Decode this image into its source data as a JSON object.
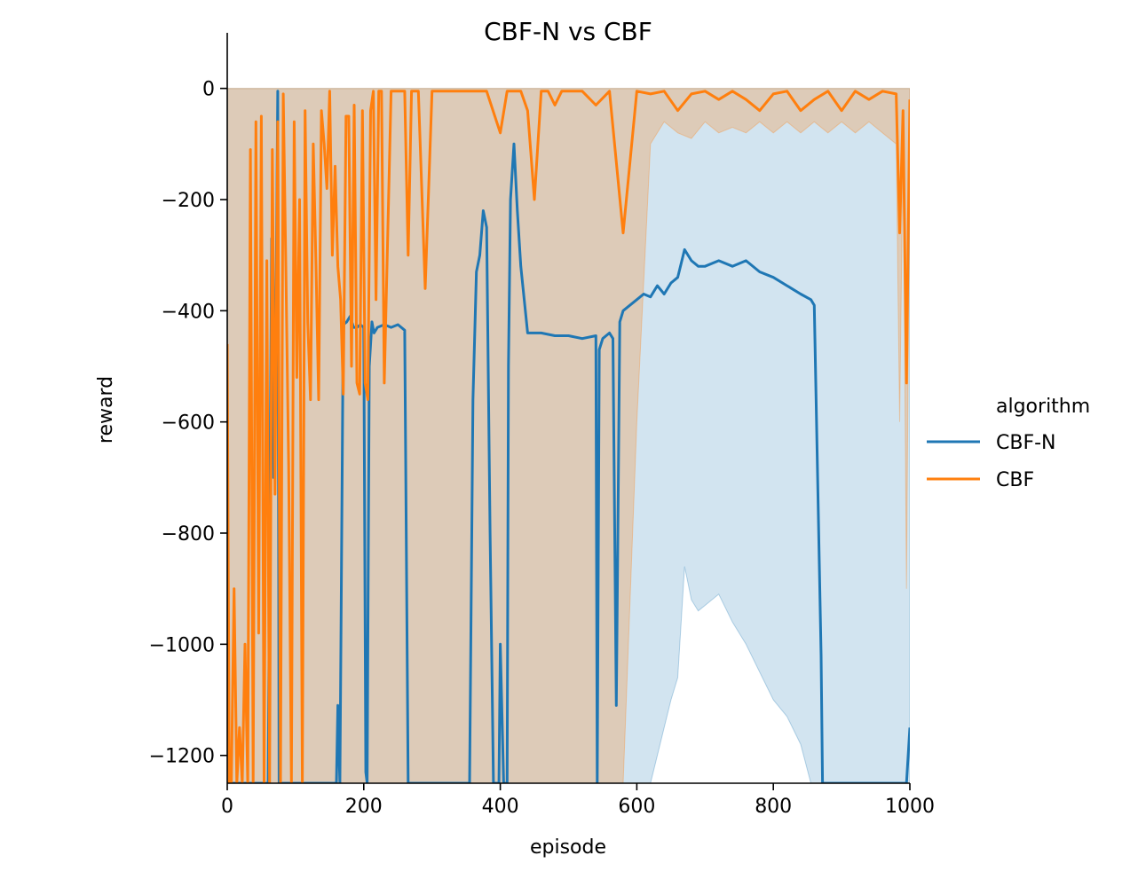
{
  "chart_data": {
    "type": "line",
    "title": "CBF-N vs CBF",
    "xlabel": "episode",
    "ylabel": "reward",
    "xlim": [
      0,
      1000
    ],
    "ylim": [
      -1250,
      100
    ],
    "x_ticks": [
      0,
      200,
      400,
      600,
      800,
      1000
    ],
    "y_ticks": [
      0,
      -200,
      -400,
      -600,
      -800,
      -1000,
      -1200
    ],
    "x_tick_labels": [
      "0",
      "200",
      "400",
      "600",
      "800",
      "1000"
    ],
    "y_tick_labels": [
      "0",
      "−200",
      "−400",
      "−600",
      "−800",
      "−1000",
      "−1200"
    ],
    "grid": false,
    "legend": {
      "title": "algorithm",
      "placement": "right"
    },
    "series": [
      {
        "name": "CBF-N",
        "color": "#1f77b4",
        "band_color": "#1f77b4",
        "x": [
          0,
          60,
          65,
          68,
          70,
          72,
          74,
          76,
          78,
          80,
          150,
          155,
          160,
          162,
          165,
          170,
          175,
          180,
          185,
          190,
          195,
          200,
          203,
          205,
          208,
          212,
          215,
          220,
          230,
          240,
          250,
          260,
          265,
          268,
          350,
          355,
          360,
          365,
          370,
          375,
          380,
          385,
          390,
          398,
          400,
          405,
          408,
          410,
          412,
          415,
          420,
          425,
          430,
          440,
          460,
          480,
          500,
          520,
          540,
          542,
          545,
          550,
          555,
          560,
          565,
          570,
          575,
          580,
          590,
          600,
          610,
          620,
          630,
          640,
          650,
          660,
          670,
          680,
          690,
          700,
          720,
          740,
          760,
          780,
          800,
          820,
          840,
          855,
          860,
          870,
          872,
          875,
          878,
          990,
          995,
          1000
        ],
        "y": [
          -1250,
          -1250,
          -270,
          -700,
          -620,
          -300,
          -5,
          -1250,
          -1250,
          -1250,
          -1250,
          -1250,
          -1250,
          -1110,
          -1250,
          -425,
          -420,
          -410,
          -430,
          -430,
          -425,
          -430,
          -1230,
          -1250,
          -500,
          -420,
          -440,
          -430,
          -425,
          -430,
          -425,
          -435,
          -1250,
          -1250,
          -1250,
          -1250,
          -560,
          -330,
          -300,
          -220,
          -250,
          -800,
          -1250,
          -1250,
          -1000,
          -1250,
          -1250,
          -1250,
          -500,
          -200,
          -100,
          -220,
          -320,
          -440,
          -440,
          -445,
          -445,
          -450,
          -445,
          -1250,
          -470,
          -450,
          -445,
          -440,
          -450,
          -1110,
          -420,
          -400,
          -390,
          -380,
          -370,
          -375,
          -355,
          -370,
          -350,
          -340,
          -290,
          -310,
          -320,
          -320,
          -310,
          -320,
          -310,
          -330,
          -340,
          -355,
          -370,
          -380,
          -390,
          -1020,
          -1250,
          -1250,
          -1250,
          -1250,
          -1250,
          -1150
        ],
        "band_lower": [
          -1250,
          -1250,
          -1250,
          -1250,
          -1250,
          -1250,
          -1250,
          -1250,
          -1250,
          -1250,
          -1250,
          -1250,
          -1250,
          -1250,
          -1250,
          -1250,
          -1250,
          -1250,
          -1250,
          -1250,
          -1250,
          -1250,
          -1250,
          -1250,
          -1250,
          -1250,
          -1250,
          -1250,
          -1250,
          -1250,
          -1250,
          -1250,
          -1250,
          -1250,
          -1250,
          -1250,
          -1250,
          -1250,
          -1250,
          -1250,
          -1250,
          -1250,
          -1250,
          -1250,
          -1250,
          -1250,
          -1250,
          -1250,
          -1250,
          -1250,
          -1250,
          -1250,
          -1250,
          -1250,
          -1250,
          -1250,
          -1250,
          -1250,
          -1250,
          -1250,
          -1250,
          -1250,
          -1250,
          -1250,
          -1250,
          -1250,
          -1250,
          -1250,
          -1250,
          -1250,
          -1250,
          -1250,
          -1200,
          -1150,
          -1100,
          -1060,
          -860,
          -920,
          -940,
          -930,
          -910,
          -960,
          -1000,
          -1050,
          -1100,
          -1130,
          -1180,
          -1250,
          -1250,
          -1250,
          -1250,
          -1250,
          -1250,
          -1250,
          -1250,
          -1250
        ],
        "band_upper": [
          0,
          0,
          0,
          0,
          0,
          0,
          0,
          0,
          0,
          0,
          0,
          0,
          0,
          0,
          0,
          0,
          0,
          0,
          0,
          0,
          0,
          0,
          0,
          0,
          0,
          0,
          0,
          0,
          0,
          0,
          0,
          0,
          0,
          0,
          0,
          0,
          0,
          0,
          0,
          0,
          0,
          0,
          0,
          0,
          0,
          0,
          0,
          0,
          0,
          0,
          0,
          0,
          0,
          0,
          0,
          0,
          0,
          0,
          0,
          0,
          0,
          0,
          0,
          0,
          0,
          0,
          0,
          0,
          0,
          0,
          0,
          0,
          0,
          0,
          0,
          0,
          0,
          0,
          0,
          0,
          0,
          0,
          0,
          0,
          0,
          0,
          0,
          0,
          0,
          0,
          0,
          0,
          0,
          0,
          0,
          0
        ]
      },
      {
        "name": "CBF",
        "color": "#ff7f0e",
        "band_color": "#ff7f0e",
        "x": [
          0,
          3,
          6,
          10,
          14,
          18,
          22,
          26,
          30,
          34,
          38,
          42,
          46,
          50,
          54,
          58,
          62,
          66,
          70,
          74,
          78,
          82,
          86,
          90,
          94,
          98,
          102,
          106,
          110,
          114,
          118,
          122,
          126,
          130,
          134,
          138,
          142,
          146,
          150,
          154,
          158,
          162,
          166,
          170,
          174,
          178,
          182,
          186,
          190,
          194,
          198,
          202,
          206,
          210,
          214,
          218,
          222,
          226,
          230,
          240,
          250,
          260,
          265,
          270,
          275,
          280,
          290,
          300,
          320,
          340,
          360,
          380,
          400,
          410,
          420,
          430,
          440,
          450,
          460,
          470,
          480,
          490,
          500,
          520,
          540,
          560,
          580,
          600,
          620,
          640,
          660,
          680,
          700,
          720,
          740,
          760,
          780,
          800,
          820,
          840,
          860,
          880,
          900,
          920,
          940,
          960,
          980,
          985,
          990,
          995,
          1000
        ],
        "y": [
          -460,
          -1250,
          -1250,
          -900,
          -1250,
          -1150,
          -1250,
          -1000,
          -1250,
          -110,
          -1250,
          -60,
          -980,
          -50,
          -1250,
          -310,
          -1250,
          -110,
          -730,
          -60,
          -1250,
          -10,
          -330,
          -680,
          -1250,
          -60,
          -520,
          -200,
          -1250,
          -40,
          -420,
          -560,
          -100,
          -320,
          -560,
          -40,
          -100,
          -180,
          -5,
          -300,
          -140,
          -320,
          -380,
          -550,
          -50,
          -50,
          -500,
          -30,
          -530,
          -550,
          -40,
          -530,
          -560,
          -40,
          -5,
          -380,
          -5,
          -5,
          -530,
          -5,
          -5,
          -5,
          -300,
          -5,
          -5,
          -5,
          -360,
          -5,
          -5,
          -5,
          -5,
          -5,
          -80,
          -5,
          -5,
          -5,
          -40,
          -200,
          -5,
          -5,
          -30,
          -5,
          -5,
          -5,
          -30,
          -5,
          -260,
          -5,
          -10,
          -5,
          -40,
          -10,
          -5,
          -20,
          -5,
          -20,
          -40,
          -10,
          -5,
          -40,
          -20,
          -5,
          -40,
          -5,
          -20,
          -5,
          -10,
          -260,
          -40,
          -530,
          -20
        ],
        "band_lower": [
          -1250,
          -1250,
          -1250,
          -1250,
          -1250,
          -1250,
          -1250,
          -1250,
          -1250,
          -1250,
          -1250,
          -1250,
          -1250,
          -1250,
          -1250,
          -1250,
          -1250,
          -1250,
          -1250,
          -1250,
          -1250,
          -1250,
          -1250,
          -1250,
          -1250,
          -1250,
          -1250,
          -1250,
          -1250,
          -1250,
          -1250,
          -1250,
          -1250,
          -1250,
          -1250,
          -1250,
          -1250,
          -1250,
          -1250,
          -1250,
          -1250,
          -1250,
          -1250,
          -1250,
          -1250,
          -1250,
          -1250,
          -1250,
          -1250,
          -1250,
          -1250,
          -1250,
          -1250,
          -1250,
          -1250,
          -1250,
          -1250,
          -1250,
          -1250,
          -1250,
          -1250,
          -1250,
          -1250,
          -1250,
          -1250,
          -1250,
          -1250,
          -1250,
          -1250,
          -1250,
          -1250,
          -1250,
          -1250,
          -1250,
          -1250,
          -1250,
          -1250,
          -1250,
          -1250,
          -1250,
          -1250,
          -1250,
          -1250,
          -1250,
          -1250,
          -1250,
          -1250,
          -600,
          -100,
          -60,
          -80,
          -90,
          -60,
          -80,
          -70,
          -80,
          -60,
          -80,
          -60,
          -80,
          -60,
          -80,
          -60,
          -80,
          -60,
          -80,
          -100,
          -600,
          -100,
          -900,
          -100
        ],
        "band_upper": [
          0,
          0,
          0,
          0,
          0,
          0,
          0,
          0,
          0,
          0,
          0,
          0,
          0,
          0,
          0,
          0,
          0,
          0,
          0,
          0,
          0,
          0,
          0,
          0,
          0,
          0,
          0,
          0,
          0,
          0,
          0,
          0,
          0,
          0,
          0,
          0,
          0,
          0,
          0,
          0,
          0,
          0,
          0,
          0,
          0,
          0,
          0,
          0,
          0,
          0,
          0,
          0,
          0,
          0,
          0,
          0,
          0,
          0,
          0,
          0,
          0,
          0,
          0,
          0,
          0,
          0,
          0,
          0,
          0,
          0,
          0,
          0,
          0,
          0,
          0,
          0,
          0,
          0,
          0,
          0,
          0,
          0,
          0,
          0,
          0,
          0,
          0,
          0,
          0,
          0,
          0,
          0,
          0,
          0,
          0,
          0,
          0,
          0,
          0,
          0,
          0,
          0,
          0,
          0,
          0,
          0,
          0,
          0,
          0,
          0,
          0
        ]
      }
    ]
  }
}
